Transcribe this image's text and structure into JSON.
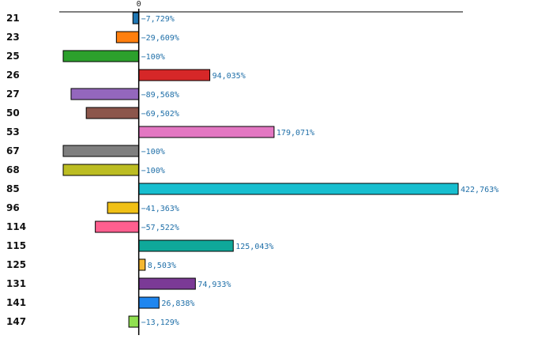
{
  "chart_data": {
    "type": "bar",
    "orientation": "horizontal",
    "title": "",
    "xlabel": "",
    "ylabel": "",
    "zero_tick_label": "0",
    "xlim": [
      -100,
      422.763
    ],
    "categories": [
      "21",
      "23",
      "25",
      "26",
      "27",
      "50",
      "53",
      "67",
      "68",
      "85",
      "96",
      "114",
      "115",
      "125",
      "131",
      "141",
      "147"
    ],
    "values": [
      -7.729,
      -29.609,
      -100,
      94.035,
      -89.568,
      -69.502,
      179.071,
      -100,
      -100,
      422.763,
      -41.363,
      -57.522,
      125.043,
      8.503,
      74.933,
      26.838,
      -13.129
    ],
    "value_labels": [
      "−7,729%",
      "−29,609%",
      "−100%",
      "94,035%",
      "−89,568%",
      "−69,502%",
      "179,071%",
      "−100%",
      "−100%",
      "422,763%",
      "−41,363%",
      "−57,522%",
      "125,043%",
      "8,503%",
      "74,933%",
      "26,838%",
      "−13,129%"
    ],
    "colors": [
      "#1f77b4",
      "#ff7f0e",
      "#2ca02c",
      "#d62728",
      "#9467bd",
      "#8c564b",
      "#e377c2",
      "#7f7f7f",
      "#bcbd22",
      "#17becf",
      "#f0c016",
      "#ff5f8f",
      "#0fa89a",
      "#f5b731",
      "#7b3a96",
      "#1f86ef",
      "#90e050"
    ],
    "highlight_category": "26",
    "highlight_label_color": "#d62728",
    "label_color": "#111111",
    "value_label_color": "#1f6fa8"
  }
}
